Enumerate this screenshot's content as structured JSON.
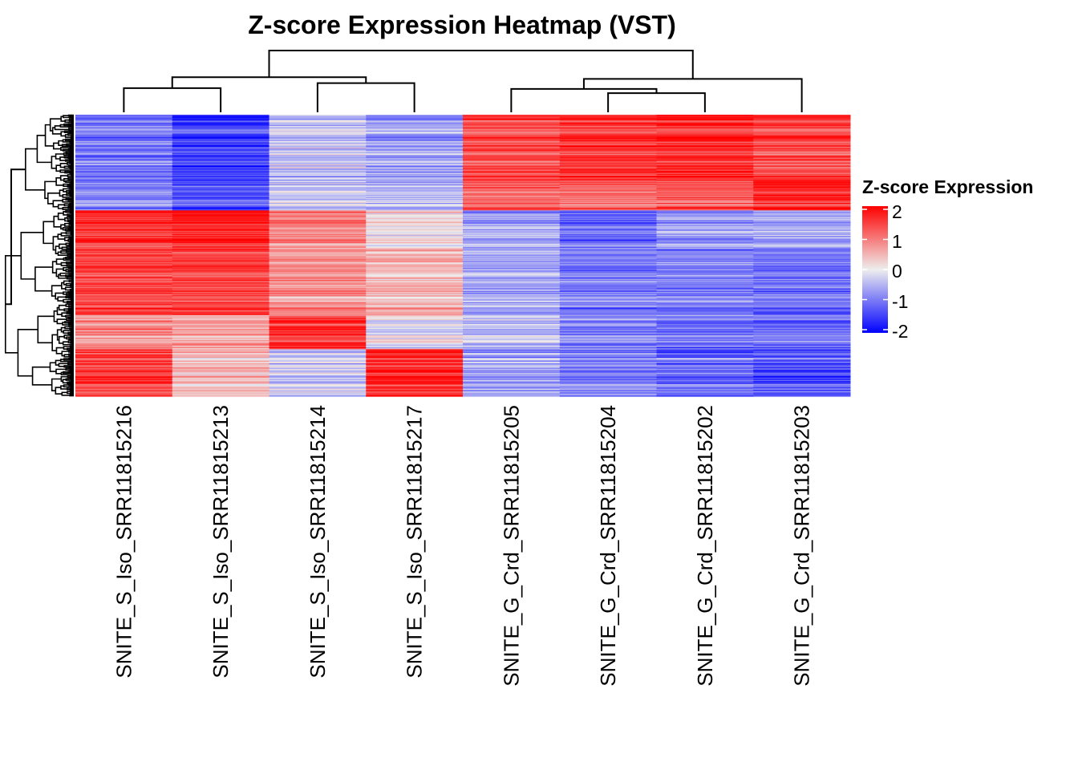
{
  "chart_data": {
    "type": "heatmap",
    "title": "Z-score Expression Heatmap (VST)",
    "columns": [
      "SNITE_S_Iso_SRR11815216",
      "SNITE_S_Iso_SRR11815213",
      "SNITE_S_Iso_SRR11815214",
      "SNITE_S_Iso_SRR11815217",
      "SNITE_G_Crd_SRR11815205",
      "SNITE_G_Crd_SRR11815204",
      "SNITE_G_Crd_SRR11815202",
      "SNITE_G_Crd_SRR11815203"
    ],
    "n_rows_approx": 300,
    "row_blocks": [
      {
        "rows": 70,
        "mean_z": [
          -0.9,
          -1.4,
          -0.3,
          -0.6,
          1.3,
          1.5,
          1.6,
          1.3
        ]
      },
      {
        "rows": 32,
        "mean_z": [
          -0.9,
          -1.3,
          -0.4,
          -0.5,
          1.2,
          1.2,
          1.3,
          1.8
        ]
      },
      {
        "rows": 40,
        "mean_z": [
          1.6,
          1.8,
          0.9,
          0.1,
          -0.6,
          -1.1,
          -0.7,
          -0.6
        ]
      },
      {
        "rows": 72,
        "mean_z": [
          1.5,
          1.5,
          0.8,
          0.5,
          -0.6,
          -1.0,
          -1.0,
          -1.1
        ]
      },
      {
        "rows": 36,
        "mean_z": [
          0.9,
          0.7,
          1.6,
          -0.2,
          -0.5,
          -0.9,
          -1.1,
          -1.1
        ]
      },
      {
        "rows": 50,
        "mean_z": [
          1.4,
          0.4,
          -0.3,
          1.6,
          -0.6,
          -0.9,
          -1.1,
          -1.3
        ]
      }
    ],
    "column_dendrogram": {
      "merges": [
        {
          "a": 1,
          "b": 2,
          "height": 0.29
        },
        {
          "a": 3,
          "b": 4,
          "height": 0.35
        },
        {
          "a": 6,
          "b": 7,
          "height": 0.23
        },
        {
          "a": 5,
          "b": "6-7",
          "height": 0.28
        },
        {
          "a": "5-6-7",
          "b": 8,
          "height": 0.4
        },
        {
          "a": "1-2",
          "b": "3-4",
          "height": 0.42
        },
        {
          "a": "1-4",
          "b": "5-8",
          "height": 0.74
        }
      ]
    },
    "legend": {
      "title": "Z-score Expression",
      "ticks": [
        "2",
        "1",
        "0",
        "-1",
        "-2"
      ],
      "tick_values": [
        2,
        1,
        0,
        -1,
        -2
      ],
      "range": [
        -2,
        2
      ],
      "colors": {
        "low": "#0000ff",
        "mid": "#eeeeee",
        "high": "#ff0000"
      }
    }
  }
}
